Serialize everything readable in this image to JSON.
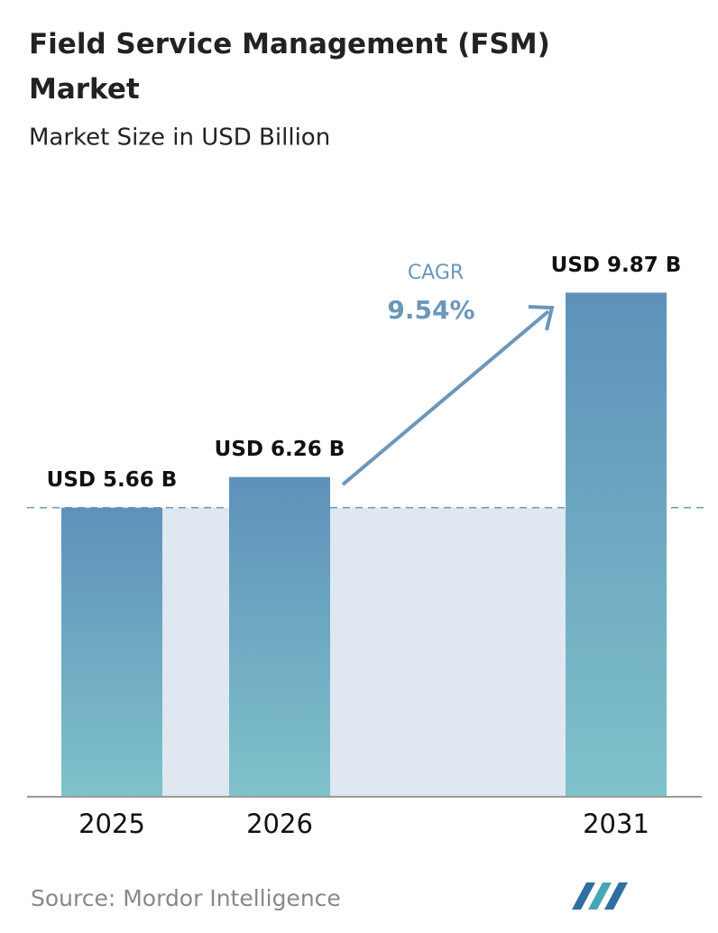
{
  "chart_data": {
    "type": "bar",
    "title": "Field Service Management (FSM) Market",
    "subtitle": "Market Size in USD Billion",
    "categories": [
      "2025",
      "2026",
      "2031"
    ],
    "values": [
      5.66,
      6.26,
      9.87
    ],
    "value_labels": [
      "USD 5.66 B",
      "USD 6.26 B",
      "USD 9.87 B"
    ],
    "colors": [
      "#5e91ba",
      "#7fc2ca"
    ],
    "ylim": [
      0,
      10
    ],
    "annotations": [
      "CAGR",
      "9.54%"
    ],
    "source": "Source:  Mordor Intelligence"
  }
}
